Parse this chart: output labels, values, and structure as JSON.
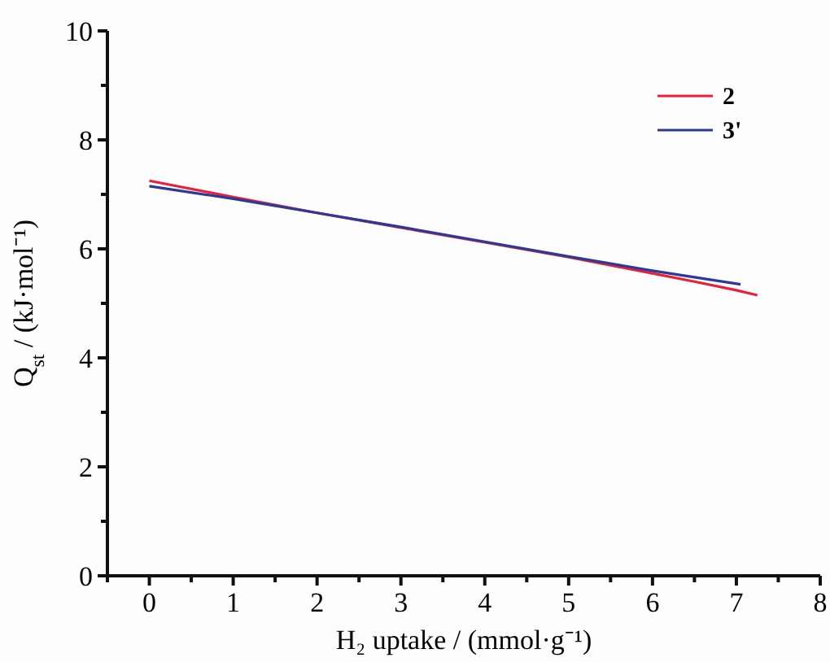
{
  "chart_data": {
    "type": "line",
    "xlabel": "H₂ uptake / (mmol·g⁻¹)",
    "ylabel": "Q$_{st}$ / (kJ·mol⁻¹)",
    "xlim": [
      -0.5,
      8
    ],
    "ylim": [
      0,
      10
    ],
    "xticks": [
      {
        "value": -0.5,
        "label": null
      },
      0,
      {
        "value": 0.5,
        "label": null
      },
      1,
      {
        "value": 1.5,
        "label": null
      },
      2,
      {
        "value": 2.5,
        "label": null
      },
      3,
      {
        "value": 3.5,
        "label": null
      },
      4,
      {
        "value": 4.5,
        "label": null
      },
      5,
      {
        "value": 5.5,
        "label": null
      },
      6,
      {
        "value": 6.5,
        "label": null
      },
      7,
      {
        "value": 7.5,
        "label": null
      },
      8
    ],
    "yticks": [
      0,
      {
        "value": 1,
        "label": null
      },
      2,
      {
        "value": 3,
        "label": null
      },
      4,
      {
        "value": 5,
        "label": null
      },
      6,
      {
        "value": 7,
        "label": null
      },
      8,
      {
        "value": 9,
        "label": null
      },
      10
    ],
    "legend": "top right",
    "grid": false,
    "marker": "none",
    "line_style": "solid",
    "series": [
      {
        "name": "2",
        "color": "#e8203a",
        "x": [
          0,
          1,
          2,
          3,
          4,
          5,
          6,
          6.5,
          7,
          7.25
        ],
        "values": [
          7.25,
          6.95,
          6.66,
          6.39,
          6.12,
          5.85,
          5.55,
          5.4,
          5.24,
          5.15
        ]
      },
      {
        "name": "3'",
        "color": "#2b3a97",
        "x": [
          0,
          1,
          2,
          3,
          4,
          5,
          6,
          6.5,
          7.05
        ],
        "values": [
          7.15,
          6.92,
          6.66,
          6.4,
          6.13,
          5.86,
          5.6,
          5.48,
          5.35
        ]
      }
    ]
  }
}
